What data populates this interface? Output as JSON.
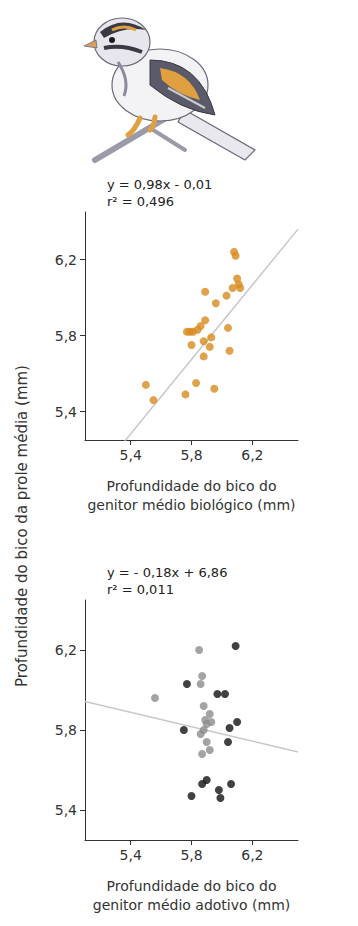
{
  "chart_data": [
    {
      "type": "scatter",
      "ylabel": "Profundidade do bico da prole média (mm)",
      "xlabel": "Profundidade do bico do genitor médio biológico (mm)",
      "annotations": [
        "y = 0,98x - 0,01",
        "r² = 0,496"
      ],
      "fit": {
        "slope": 0.98,
        "intercept": -0.01
      },
      "fit_color": "#c8c8c8",
      "xlim": [
        5.1,
        6.5
      ],
      "xticks": [
        {
          "value": 5.4,
          "label": "5,4"
        },
        {
          "value": 5.8,
          "label": "5,8"
        },
        {
          "value": 6.2,
          "label": "6,2"
        }
      ],
      "ylim": [
        5.25,
        6.45
      ],
      "yticks": [
        {
          "value": 5.4,
          "label": "5,4"
        },
        {
          "value": 5.8,
          "label": "5,8"
        },
        {
          "value": 6.2,
          "label": "6,2"
        }
      ],
      "grid": false,
      "series": [
        {
          "color": "#d8891e",
          "marker": "circle",
          "x": [
            5.5,
            5.55,
            5.76,
            5.77,
            5.79,
            5.81,
            5.83,
            5.84,
            5.86,
            5.88,
            5.88,
            5.89,
            5.89,
            5.92,
            5.93,
            5.95,
            5.96,
            6.03,
            6.04,
            6.05,
            6.07,
            6.08,
            6.09,
            6.1,
            6.12,
            6.11,
            5.8
          ],
          "values": [
            5.54,
            5.46,
            5.49,
            5.82,
            5.82,
            5.82,
            5.55,
            5.83,
            5.85,
            5.69,
            5.77,
            5.88,
            6.03,
            5.74,
            5.79,
            5.52,
            5.97,
            6.01,
            5.84,
            5.72,
            6.05,
            6.24,
            6.22,
            6.1,
            6.05,
            6.07,
            5.75
          ]
        }
      ]
    },
    {
      "type": "scatter",
      "xlabel": "Profundidade do bico do genitor médio adotivo (mm)",
      "annotations": [
        "y = - 0,18x + 6,86",
        "r² = 0,011"
      ],
      "fit": {
        "slope": -0.18,
        "intercept": 6.86
      },
      "fit_color": "#c8c8c8",
      "xlim": [
        5.1,
        6.5
      ],
      "xticks": [
        {
          "value": 5.4,
          "label": "5,4"
        },
        {
          "value": 5.8,
          "label": "5,8"
        },
        {
          "value": 6.2,
          "label": "6,2"
        }
      ],
      "ylim": [
        5.25,
        6.45
      ],
      "yticks": [
        {
          "value": 5.4,
          "label": "5,4"
        },
        {
          "value": 5.8,
          "label": "5,8"
        },
        {
          "value": 6.2,
          "label": "6,2"
        }
      ],
      "grid": false,
      "series": [
        {
          "color": "#8c8c8c",
          "marker": "circle",
          "x": [
            5.56,
            5.85,
            5.87,
            5.86,
            5.88,
            5.89,
            5.9,
            5.88,
            5.86,
            5.9,
            5.87,
            5.92,
            5.93,
            5.92
          ],
          "values": [
            5.96,
            6.2,
            6.07,
            6.03,
            5.92,
            5.85,
            5.83,
            5.8,
            5.78,
            5.74,
            5.68,
            5.88,
            5.84,
            5.7
          ]
        },
        {
          "color": "#111111",
          "marker": "circle",
          "x": [
            5.75,
            5.77,
            5.8,
            5.87,
            5.9,
            5.97,
            5.98,
            5.99,
            6.04,
            6.05,
            6.06,
            6.09,
            6.1,
            6.02
          ],
          "values": [
            5.8,
            6.03,
            5.47,
            5.53,
            5.55,
            5.98,
            5.5,
            5.46,
            5.74,
            5.81,
            5.53,
            6.22,
            5.84,
            5.98
          ]
        }
      ]
    }
  ]
}
